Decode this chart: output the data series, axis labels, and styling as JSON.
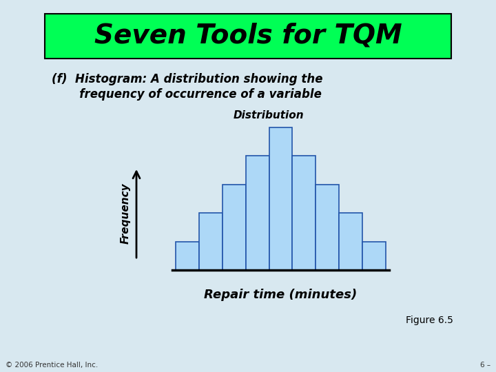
{
  "title": "Seven Tools for TQM",
  "title_bg": "#00ff55",
  "subtitle_line1": "(f)  Histogram: A distribution showing the",
  "subtitle_line2": "       frequency of occurrence of a variable",
  "chart_title": "Distribution",
  "xlabel": "Repair time (minutes)",
  "ylabel": "Frequency",
  "figure_label": "Figure 6.5",
  "copyright": "© 2006 Prentice Hall, Inc.",
  "page_num": "6 –",
  "bar_values": [
    1,
    2,
    3,
    4,
    5,
    4,
    3,
    2,
    1
  ],
  "bar_color": "#add8f7",
  "bar_edge_color": "#2255aa",
  "bg_color": "#d8e8f0",
  "text_color": "#000000"
}
